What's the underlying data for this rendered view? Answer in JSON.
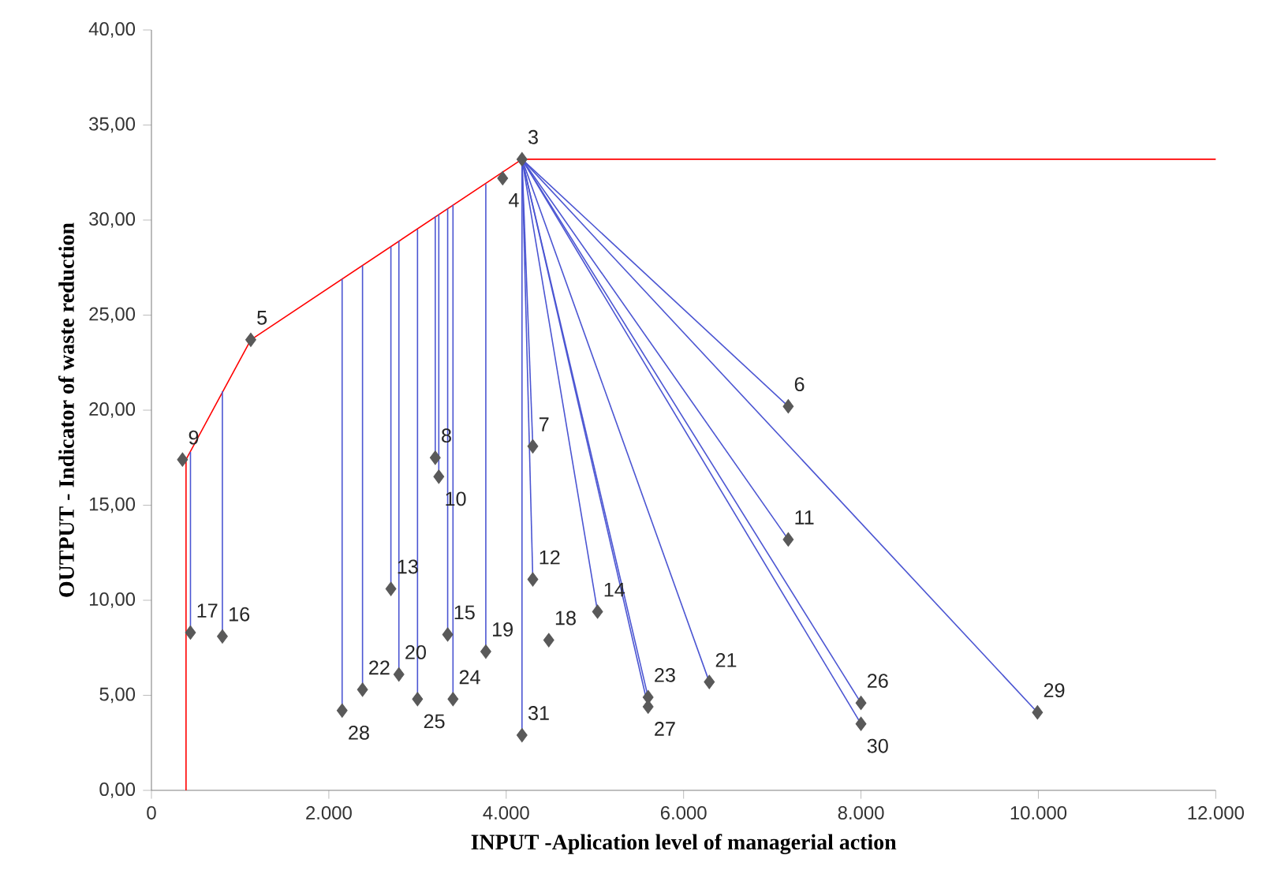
{
  "chart_data": {
    "type": "scatter",
    "xlabel": "INPUT -Aplication level of managerial action",
    "ylabel": "OUTPUT - Indicator of waste reduction",
    "xlim": [
      0,
      12000
    ],
    "ylim": [
      0,
      40
    ],
    "xticks": [
      {
        "value": 0,
        "label": "0"
      },
      {
        "value": 2000,
        "label": "2.000"
      },
      {
        "value": 4000,
        "label": "4.000"
      },
      {
        "value": 6000,
        "label": "6.000"
      },
      {
        "value": 8000,
        "label": "8.000"
      },
      {
        "value": 10000,
        "label": "10.000"
      },
      {
        "value": 12000,
        "label": "12.000"
      }
    ],
    "yticks": [
      {
        "value": 0,
        "label": "0,00"
      },
      {
        "value": 5,
        "label": "5,00"
      },
      {
        "value": 10,
        "label": "10,00"
      },
      {
        "value": 15,
        "label": "15,00"
      },
      {
        "value": 20,
        "label": "20,00"
      },
      {
        "value": 25,
        "label": "25,00"
      },
      {
        "value": 30,
        "label": "30,00"
      },
      {
        "value": 35,
        "label": "35,00"
      },
      {
        "value": 40,
        "label": "40,00"
      }
    ],
    "series": [
      {
        "type": "line",
        "color": "#ff0000",
        "x": [
          390,
          390,
          1120,
          4178,
          12000
        ],
        "values": [
          0,
          17.4,
          23.7,
          33.2,
          33.2
        ]
      },
      {
        "type": "line",
        "color": "#4b55d2",
        "x": [
          440,
          440
        ],
        "values": [
          8.3,
          17.8
        ]
      },
      {
        "type": "line",
        "color": "#4b55d2",
        "x": [
          800,
          800
        ],
        "values": [
          8.1,
          21.0
        ]
      },
      {
        "type": "line",
        "color": "#4b55d2",
        "x": [
          2150,
          2150
        ],
        "values": [
          4.2,
          26.9
        ]
      },
      {
        "type": "line",
        "color": "#4b55d2",
        "x": [
          2380,
          2380
        ],
        "values": [
          5.3,
          27.6
        ]
      },
      {
        "type": "line",
        "color": "#4b55d2",
        "x": [
          2700,
          2700
        ],
        "values": [
          10.6,
          28.6
        ]
      },
      {
        "type": "line",
        "color": "#4b55d2",
        "x": [
          2790,
          2790
        ],
        "values": [
          6.1,
          28.9
        ]
      },
      {
        "type": "line",
        "color": "#4b55d2",
        "x": [
          3000,
          3000
        ],
        "values": [
          4.8,
          29.5
        ]
      },
      {
        "type": "line",
        "color": "#4b55d2",
        "x": [
          3200,
          3200
        ],
        "values": [
          17.5,
          30.2
        ]
      },
      {
        "type": "line",
        "color": "#4b55d2",
        "x": [
          3240,
          3240
        ],
        "values": [
          16.5,
          30.3
        ]
      },
      {
        "type": "line",
        "color": "#4b55d2",
        "x": [
          3340,
          3340
        ],
        "values": [
          8.2,
          30.6
        ]
      },
      {
        "type": "line",
        "color": "#4b55d2",
        "x": [
          3400,
          3400
        ],
        "values": [
          4.8,
          30.8
        ]
      },
      {
        "type": "line",
        "color": "#4b55d2",
        "x": [
          3770,
          3770
        ],
        "values": [
          7.3,
          31.9
        ]
      },
      {
        "type": "line",
        "color": "#4b55d2",
        "x": [
          4178,
          4178
        ],
        "values": [
          2.9,
          33.2
        ]
      },
      {
        "type": "line",
        "color": "#4b55d2",
        "x": [
          4300,
          4178
        ],
        "values": [
          18.1,
          33.2
        ]
      },
      {
        "type": "line",
        "color": "#4b55d2",
        "x": [
          4300,
          4178
        ],
        "values": [
          11.1,
          33.2
        ]
      },
      {
        "type": "line",
        "color": "#4b55d2",
        "x": [
          5030,
          4178
        ],
        "values": [
          9.4,
          33.2
        ]
      },
      {
        "type": "line",
        "color": "#4b55d2",
        "x": [
          5600,
          4178
        ],
        "values": [
          4.9,
          33.2
        ]
      },
      {
        "type": "line",
        "color": "#4b55d2",
        "x": [
          5600,
          4178
        ],
        "values": [
          4.4,
          33.2
        ]
      },
      {
        "type": "line",
        "color": "#4b55d2",
        "x": [
          6290,
          4178
        ],
        "values": [
          5.7,
          33.2
        ]
      },
      {
        "type": "line",
        "color": "#4b55d2",
        "x": [
          7180,
          4178
        ],
        "values": [
          13.2,
          33.2
        ]
      },
      {
        "type": "line",
        "color": "#4b55d2",
        "x": [
          7180,
          4178
        ],
        "values": [
          20.2,
          33.2
        ]
      },
      {
        "type": "line",
        "color": "#4b55d2",
        "x": [
          8000,
          4178
        ],
        "values": [
          4.6,
          33.2
        ]
      },
      {
        "type": "line",
        "color": "#4b55d2",
        "x": [
          8000,
          4178
        ],
        "values": [
          3.5,
          33.2
        ]
      },
      {
        "type": "line",
        "color": "#4b55d2",
        "x": [
          9990,
          4178
        ],
        "values": [
          4.1,
          33.2
        ]
      },
      {
        "marker": "diamond",
        "color": "#595959",
        "x": [
          4178,
          3960,
          1120,
          7180,
          4300,
          3200,
          350,
          3240,
          7180,
          4300,
          2700,
          5030,
          3340,
          800,
          440,
          4480,
          3770,
          2790,
          6290,
          2380,
          5600,
          3400,
          3000,
          8000,
          5600,
          2150,
          9990,
          8000,
          4178
        ],
        "values": [
          33.2,
          32.2,
          23.7,
          20.2,
          18.1,
          17.5,
          17.4,
          16.5,
          13.2,
          11.1,
          10.6,
          9.4,
          8.2,
          8.1,
          8.3,
          7.9,
          7.3,
          6.1,
          5.7,
          5.3,
          4.9,
          4.8,
          4.8,
          4.6,
          4.4,
          4.2,
          4.1,
          3.5,
          2.9
        ]
      }
    ],
    "annotations": [
      {
        "text": "3",
        "x": 4178,
        "y": 33.2
      },
      {
        "text": "4",
        "x": 3960,
        "y": 32.2
      },
      {
        "text": "5",
        "x": 1120,
        "y": 23.7
      },
      {
        "text": "6",
        "x": 7180,
        "y": 20.2
      },
      {
        "text": "7",
        "x": 4300,
        "y": 18.1
      },
      {
        "text": "8",
        "x": 3200,
        "y": 17.5
      },
      {
        "text": "9",
        "x": 350,
        "y": 17.4
      },
      {
        "text": "10",
        "x": 3240,
        "y": 16.5
      },
      {
        "text": "11",
        "x": 7180,
        "y": 13.2
      },
      {
        "text": "12",
        "x": 4300,
        "y": 11.1
      },
      {
        "text": "13",
        "x": 2700,
        "y": 10.6
      },
      {
        "text": "14",
        "x": 5030,
        "y": 9.4
      },
      {
        "text": "15",
        "x": 3340,
        "y": 8.2
      },
      {
        "text": "16",
        "x": 800,
        "y": 8.1
      },
      {
        "text": "17",
        "x": 440,
        "y": 8.3
      },
      {
        "text": "18",
        "x": 4480,
        "y": 7.9
      },
      {
        "text": "19",
        "x": 3770,
        "y": 7.3
      },
      {
        "text": "20",
        "x": 2790,
        "y": 6.1
      },
      {
        "text": "21",
        "x": 6290,
        "y": 5.7
      },
      {
        "text": "22",
        "x": 2380,
        "y": 5.3
      },
      {
        "text": "23",
        "x": 5600,
        "y": 4.9
      },
      {
        "text": "24",
        "x": 3400,
        "y": 4.8
      },
      {
        "text": "25",
        "x": 3000,
        "y": 4.8
      },
      {
        "text": "26",
        "x": 8000,
        "y": 4.6
      },
      {
        "text": "27",
        "x": 5600,
        "y": 4.4
      },
      {
        "text": "28",
        "x": 2150,
        "y": 4.2
      },
      {
        "text": "29",
        "x": 9990,
        "y": 4.1
      },
      {
        "text": "30",
        "x": 8000,
        "y": 3.5
      },
      {
        "text": "31",
        "x": 4178,
        "y": 2.9
      }
    ]
  }
}
